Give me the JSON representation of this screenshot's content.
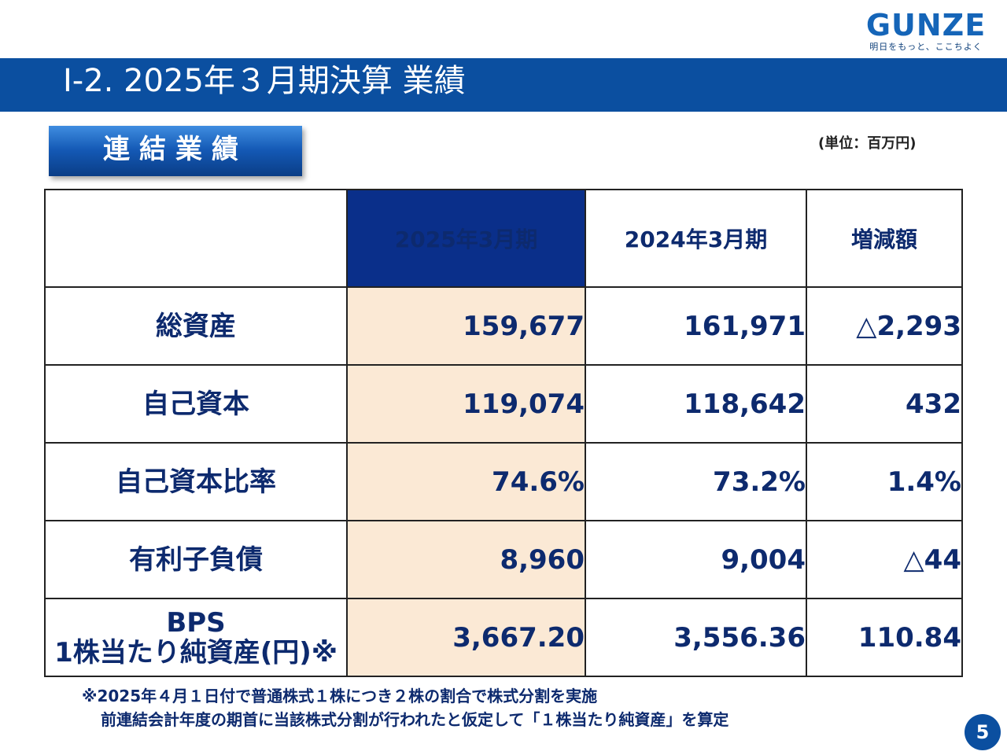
{
  "logo": {
    "brand": "GUNZE",
    "tagline": "明日をもっと、ここちよく"
  },
  "title": "Ⅰ-2. 2025年３月期決算 業績",
  "section_label": "連結業績",
  "unit_note": "(単位：百万円)",
  "table": {
    "headers": [
      "",
      "2025年3月期",
      "2024年3月期",
      "増減額"
    ],
    "rows": [
      {
        "label": "総資産",
        "label2": "",
        "values": [
          "159,677",
          "161,971",
          "△2,293"
        ]
      },
      {
        "label": "自己資本",
        "label2": "",
        "values": [
          "119,074",
          "118,642",
          "432"
        ]
      },
      {
        "label": "自己資本比率",
        "label2": "",
        "values": [
          "74.6%",
          "73.2%",
          "1.4%"
        ]
      },
      {
        "label": "有利子負債",
        "label2": "",
        "values": [
          "8,960",
          "9,004",
          "△44"
        ]
      },
      {
        "label": "BPS",
        "label2": "1株当たり純資産(円)※",
        "values": [
          "3,667.20",
          "3,556.36",
          "110.84"
        ]
      }
    ]
  },
  "footnote": {
    "line1": "※2025年４月１日付で普通株式１株につき２株の割合で株式分割を実施",
    "line2": "前連結会計年度の期首に当該株式分割が行われたと仮定して「１株当たり純資産」を算定"
  },
  "page_number": "5",
  "colors": {
    "title_bar": "#0b4fa0",
    "current_header": "#0a2f8a",
    "current_column": "#fbe9d5",
    "text_navy": "#0d2a6e"
  }
}
